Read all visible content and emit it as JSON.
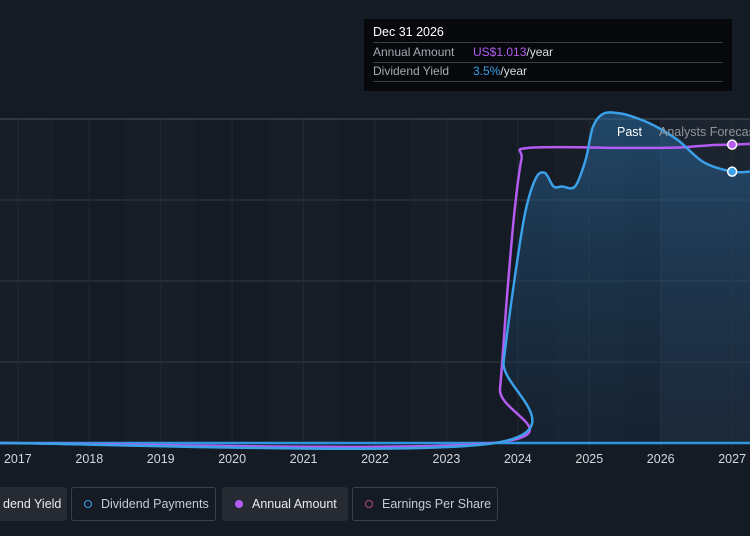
{
  "tooltip": {
    "date": "Dec 31 2026",
    "amount_label": "Annual Amount",
    "amount_value": "US$1.013",
    "amount_unit": "/year",
    "yield_label": "Dividend Yield",
    "yield_value": "3.5%",
    "yield_unit": "/year"
  },
  "region_labels": {
    "past": "Past",
    "forecast": "Analysts Forecas"
  },
  "legend": [
    {
      "label": "dend Yield",
      "icon": "none",
      "active": true
    },
    {
      "label": "Dividend Payments",
      "icon": "hollow-dot",
      "color": "#3aa0e8"
    },
    {
      "label": "Annual Amount",
      "icon": "filled-dot",
      "color": "#b45cf2"
    },
    {
      "label": "Earnings Per Share",
      "icon": "hollow-dot",
      "color": "#b2477d"
    }
  ],
  "colors": {
    "background": "#151b24",
    "annual_amount": "#b45cf2",
    "dividend_payments": "#3aa0e8",
    "grid": "#343a44",
    "baseline": "#2f95e0"
  },
  "chart_data": {
    "type": "line",
    "x_ticks": [
      "2017",
      "2018",
      "2019",
      "2020",
      "2021",
      "2022",
      "2023",
      "2024",
      "2025",
      "2026",
      "2027"
    ],
    "xlim": [
      2016.75,
      2027.25
    ],
    "ylim": [
      0,
      1.2
    ],
    "grid": true,
    "legend_position": "bottom",
    "past_end": 2026.0,
    "series": [
      {
        "name": "Annual Amount",
        "color": "#b45cf2",
        "x": [
          2016.75,
          2023.65,
          2023.75,
          2023.85,
          2023.95,
          2024.05,
          2024.15,
          2025.5,
          2025.9,
          2026.3,
          2026.7,
          2027.0,
          2027.25
        ],
        "y": [
          0,
          0,
          0.2,
          0.55,
          0.85,
          1.05,
          1.093,
          1.093,
          1.093,
          1.095,
          1.103,
          1.105,
          1.108
        ]
      },
      {
        "name": "Dividend Payments",
        "color": "#3aa0e8",
        "x": [
          2016.75,
          2023.68,
          2023.8,
          2023.95,
          2024.1,
          2024.25,
          2024.38,
          2024.5,
          2024.62,
          2024.8,
          2024.95,
          2025.05,
          2025.2,
          2025.45,
          2025.7,
          2025.95,
          2026.25,
          2026.6,
          2027.0,
          2027.25
        ],
        "y": [
          0,
          0,
          0.3,
          0.6,
          0.85,
          0.98,
          1.0,
          0.95,
          0.95,
          0.95,
          1.05,
          1.17,
          1.22,
          1.22,
          1.2,
          1.17,
          1.12,
          1.04,
          1.005,
          1.005
        ]
      }
    ],
    "highlight_points": [
      {
        "series": "Annual Amount",
        "x": 2027.0,
        "y": 1.105
      },
      {
        "series": "Dividend Payments",
        "x": 2027.0,
        "y": 1.005
      }
    ]
  }
}
